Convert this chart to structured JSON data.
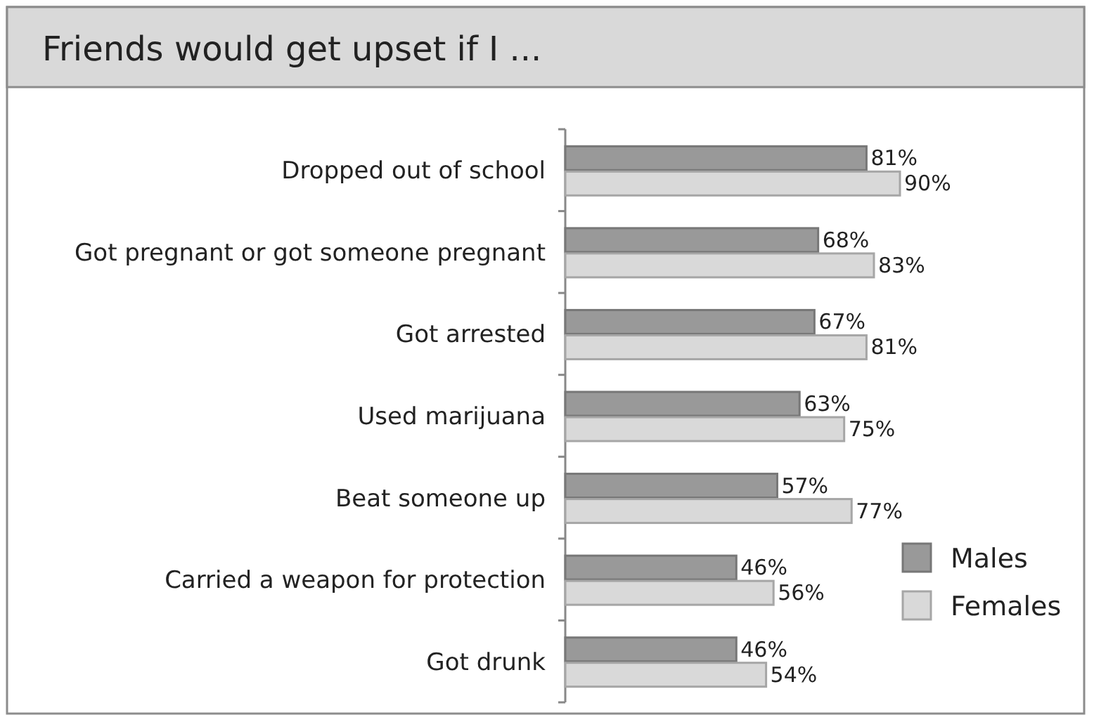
{
  "chart_data": {
    "type": "bar",
    "orientation": "horizontal",
    "title": "Friends would get upset if I ...",
    "categories": [
      "Dropped out of school",
      "Got pregnant or got someone pregnant",
      "Got arrested",
      "Used marijuana",
      "Beat someone up",
      "Carried a weapon for protection",
      "Got drunk"
    ],
    "series": [
      {
        "name": "Males",
        "color": "#999999",
        "values": [
          81,
          68,
          67,
          63,
          57,
          46,
          46
        ],
        "value_labels": [
          "81%",
          "68%",
          "67%",
          "63%",
          "57%",
          "46%",
          "46%"
        ]
      },
      {
        "name": "Females",
        "color": "#d9d9d9",
        "values": [
          90,
          83,
          81,
          75,
          77,
          56,
          54
        ],
        "value_labels": [
          "90%",
          "83%",
          "81%",
          "75%",
          "77%",
          "56%",
          "54%"
        ]
      }
    ],
    "legend": "right"
  }
}
